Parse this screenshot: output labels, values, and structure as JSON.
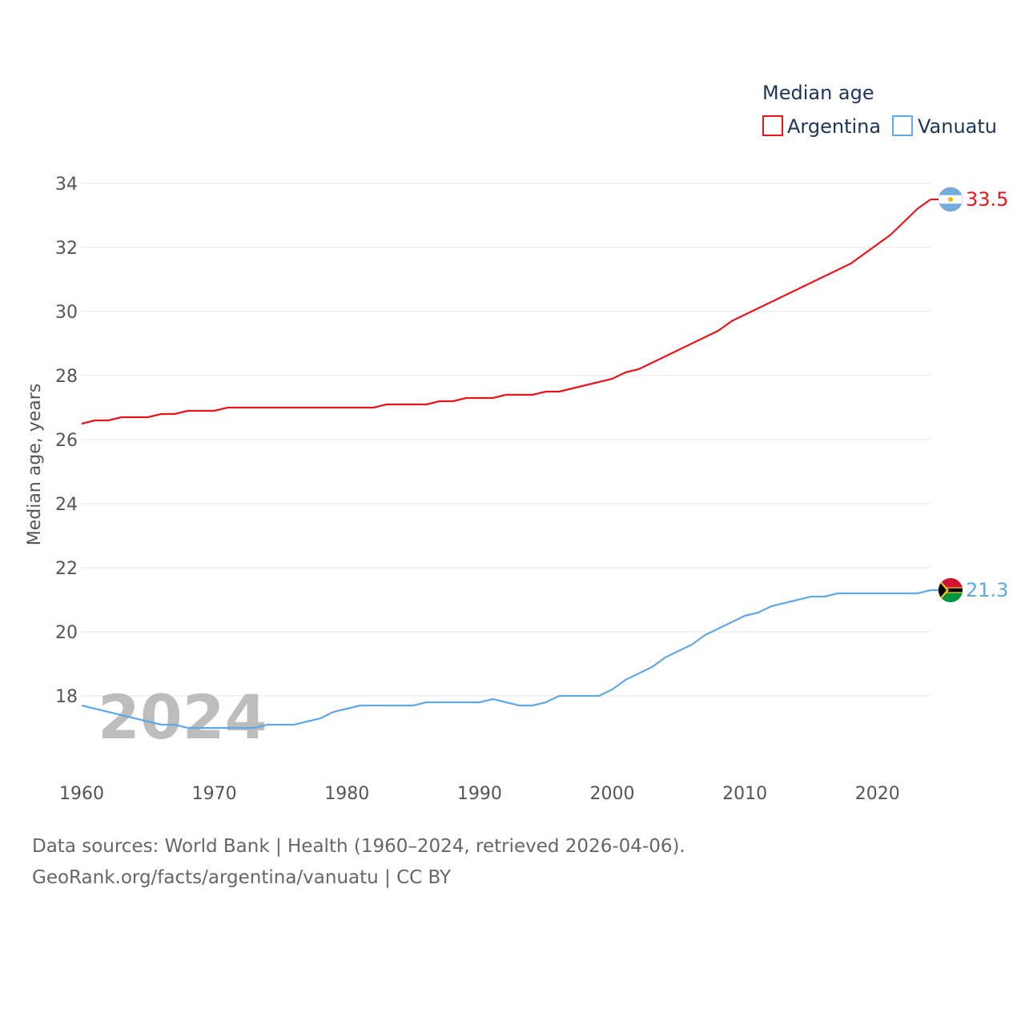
{
  "chart_data": {
    "type": "line",
    "title": "",
    "legend_title": "Median age",
    "xlabel": "",
    "ylabel": "Median age, years",
    "xlim": [
      1960,
      2024
    ],
    "ylim": [
      16,
      34.5
    ],
    "yticks": [
      18,
      20,
      22,
      24,
      26,
      28,
      30,
      32,
      34
    ],
    "xticks": [
      1960,
      1970,
      1980,
      1990,
      2000,
      2010,
      2020
    ],
    "grid": true,
    "legend_position": "top-right",
    "watermark_year": "2024",
    "x": [
      1960,
      1961,
      1962,
      1963,
      1964,
      1965,
      1966,
      1967,
      1968,
      1969,
      1970,
      1971,
      1972,
      1973,
      1974,
      1975,
      1976,
      1977,
      1978,
      1979,
      1980,
      1981,
      1982,
      1983,
      1984,
      1985,
      1986,
      1987,
      1988,
      1989,
      1990,
      1991,
      1992,
      1993,
      1994,
      1995,
      1996,
      1997,
      1998,
      1999,
      2000,
      2001,
      2002,
      2003,
      2004,
      2005,
      2006,
      2007,
      2008,
      2009,
      2010,
      2011,
      2012,
      2013,
      2014,
      2015,
      2016,
      2017,
      2018,
      2019,
      2020,
      2021,
      2022,
      2023,
      2024
    ],
    "series": [
      {
        "name": "Argentina",
        "color": "#e8161b",
        "end_label": "33.5",
        "flag": "argentina-flag-icon",
        "values": [
          26.5,
          26.6,
          26.6,
          26.7,
          26.7,
          26.7,
          26.8,
          26.8,
          26.9,
          26.9,
          26.9,
          27.0,
          27.0,
          27.0,
          27.0,
          27.0,
          27.0,
          27.0,
          27.0,
          27.0,
          27.0,
          27.0,
          27.0,
          27.1,
          27.1,
          27.1,
          27.1,
          27.2,
          27.2,
          27.3,
          27.3,
          27.3,
          27.4,
          27.4,
          27.4,
          27.5,
          27.5,
          27.6,
          27.7,
          27.8,
          27.9,
          28.1,
          28.2,
          28.4,
          28.6,
          28.8,
          29.0,
          29.2,
          29.4,
          29.7,
          29.9,
          30.1,
          30.3,
          30.5,
          30.7,
          30.9,
          31.1,
          31.3,
          31.5,
          31.8,
          32.1,
          32.4,
          32.8,
          33.2,
          33.5
        ]
      },
      {
        "name": "Vanuatu",
        "color": "#62a8e5",
        "end_label": "21.3",
        "flag": "vanuatu-flag-icon",
        "values": [
          17.7,
          17.6,
          17.5,
          17.4,
          17.3,
          17.2,
          17.1,
          17.1,
          17.0,
          17.0,
          17.0,
          17.0,
          17.0,
          17.0,
          17.1,
          17.1,
          17.1,
          17.2,
          17.3,
          17.5,
          17.6,
          17.7,
          17.7,
          17.7,
          17.7,
          17.7,
          17.8,
          17.8,
          17.8,
          17.8,
          17.8,
          17.9,
          17.8,
          17.7,
          17.7,
          17.8,
          18.0,
          18.0,
          18.0,
          18.0,
          18.2,
          18.5,
          18.7,
          18.9,
          19.2,
          19.4,
          19.6,
          19.9,
          20.1,
          20.3,
          20.5,
          20.6,
          20.8,
          20.9,
          21.0,
          21.1,
          21.1,
          21.2,
          21.2,
          21.2,
          21.2,
          21.2,
          21.2,
          21.2,
          21.3
        ]
      }
    ]
  },
  "footer": {
    "sources": "Data sources: World Bank | Health (1960–2024, retrieved 2026-04-06).",
    "link": "GeoRank.org/facts/argentina/vanuatu | CC BY"
  }
}
